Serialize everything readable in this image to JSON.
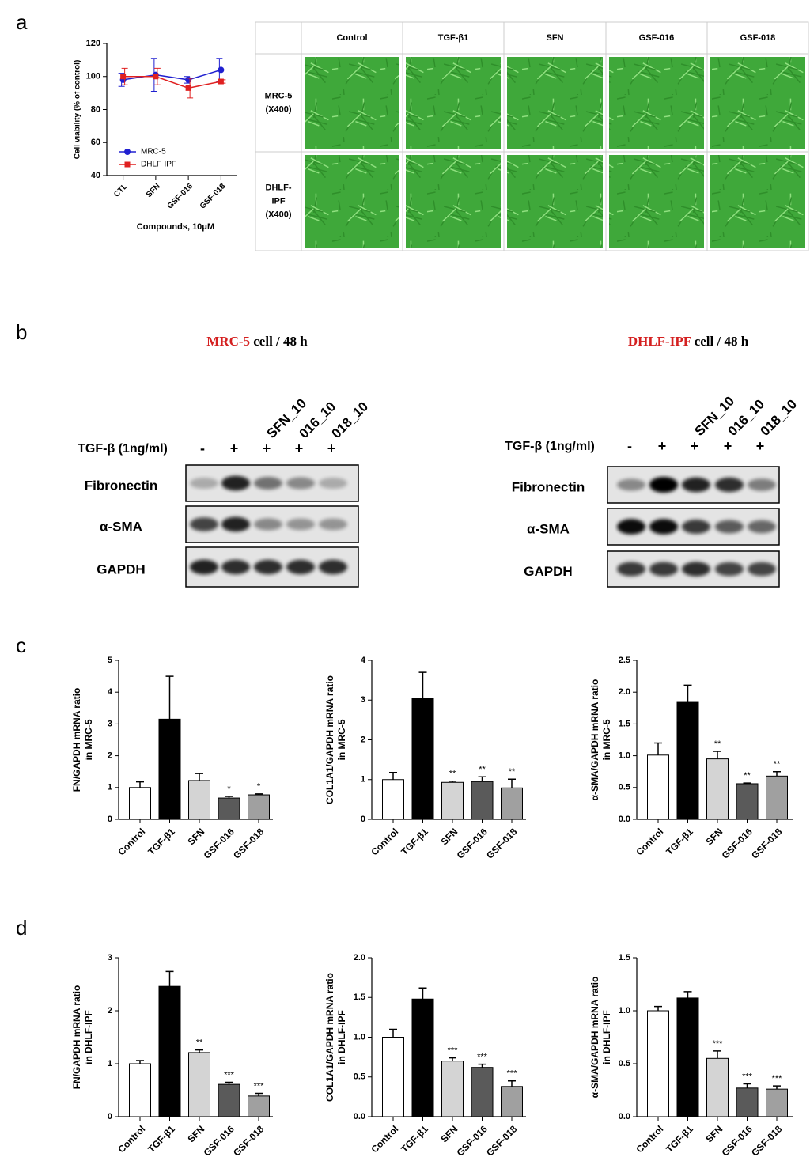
{
  "panel_labels": [
    "a",
    "b",
    "c",
    "d"
  ],
  "micrographs": {
    "columns": [
      "Control",
      "TGF-β1",
      "SFN",
      "GSF-016",
      "GSF-018"
    ],
    "rows": [
      [
        "MRC-5",
        "(X400)"
      ],
      [
        "DHLF-",
        "IPF",
        "(X400)"
      ]
    ]
  },
  "blots": [
    {
      "title_cell": "MRC-5",
      "title_rest": "cell / 48 h",
      "lanes": [
        "SFN_10",
        "016_10",
        "018_10"
      ],
      "treatment": "TGF-β (1ng/ml)",
      "signs": [
        "-",
        "+",
        "+",
        "+",
        "+"
      ],
      "proteins": [
        "Fibronectin",
        "α-SMA",
        "GAPDH"
      ]
    },
    {
      "title_cell": "DHLF-IPF",
      "title_rest": "cell / 48 h",
      "lanes": [
        "SFN_10",
        "016_10",
        "018_10"
      ],
      "treatment": "TGF-β (1ng/ml)",
      "signs": [
        "-",
        "+",
        "+",
        "+",
        "+"
      ],
      "proteins": [
        "Fibronectin",
        "α-SMA",
        "GAPDH"
      ]
    }
  ],
  "chart_data": [
    {
      "type": "line",
      "ylabel": "Cell viability (% of control)",
      "xlabel": "Compounds, 10μM",
      "categories": [
        "CTL",
        "SFN",
        "GSF-016",
        "GSF-018"
      ],
      "series": [
        {
          "name": "MRC-5",
          "color": "#2020d0",
          "marker": "circle",
          "values": [
            98,
            101,
            98,
            104
          ],
          "errors": [
            4,
            10,
            2,
            7
          ]
        },
        {
          "name": "DHLF-IPF",
          "color": "#e02020",
          "marker": "square",
          "values": [
            100,
            100,
            93,
            97
          ],
          "errors": [
            5,
            5,
            6,
            1
          ]
        }
      ],
      "ylim": [
        40,
        120
      ],
      "yticks": [
        40,
        60,
        80,
        100,
        120
      ]
    },
    {
      "type": "bar",
      "ylabel": "FN/GAPDH mRNA ratio",
      "ylabel2": "in MRC-5",
      "categories": [
        "Control",
        "TGF-β1",
        "SFN",
        "GSF-016",
        "GSF-018"
      ],
      "values": [
        1.0,
        3.15,
        1.22,
        0.67,
        0.77
      ],
      "errors": [
        0.18,
        1.35,
        0.22,
        0.05,
        0.03
      ],
      "annotations": [
        null,
        null,
        null,
        "*",
        "*"
      ],
      "colors": [
        "#ffffff",
        "#000000",
        "#d4d4d4",
        "#5a5a5a",
        "#a0a0a0"
      ],
      "ylim": [
        0,
        5
      ],
      "yticks": [
        0,
        1,
        2,
        3,
        4,
        5
      ]
    },
    {
      "type": "bar",
      "ylabel": "COL1A1/GAPDH mRNA ratio",
      "ylabel2": "in MRC-5",
      "categories": [
        "Control",
        "TGF-β1",
        "SFN",
        "GSF-016",
        "GSF-018"
      ],
      "values": [
        1.0,
        3.05,
        0.93,
        0.95,
        0.79
      ],
      "errors": [
        0.18,
        0.65,
        0.03,
        0.12,
        0.22
      ],
      "annotations": [
        null,
        null,
        "**",
        "**",
        "**"
      ],
      "colors": [
        "#ffffff",
        "#000000",
        "#d4d4d4",
        "#5a5a5a",
        "#a0a0a0"
      ],
      "ylim": [
        0,
        4
      ],
      "yticks": [
        0,
        1,
        2,
        3,
        4
      ]
    },
    {
      "type": "bar",
      "ylabel": "α-SMA/GAPDH mRNA ratio",
      "ylabel2": "in MRC-5",
      "categories": [
        "Control",
        "TGF-β1",
        "SFN",
        "GSF-016",
        "GSF-018"
      ],
      "values": [
        1.01,
        1.84,
        0.95,
        0.56,
        0.68
      ],
      "errors": [
        0.19,
        0.27,
        0.12,
        0.01,
        0.07
      ],
      "annotations": [
        null,
        null,
        "**",
        "**",
        "**"
      ],
      "colors": [
        "#ffffff",
        "#000000",
        "#d4d4d4",
        "#5a5a5a",
        "#a0a0a0"
      ],
      "ylim": [
        0,
        2.5
      ],
      "yticks": [
        {
          "value": 0,
          "label": "0.0"
        },
        0.5,
        {
          "value": 1,
          "label": "1.0"
        },
        1.5,
        {
          "value": 2,
          "label": "2.0"
        },
        2.5
      ]
    },
    {
      "type": "bar",
      "ylabel": "FN/GAPDH mRNA ratio",
      "ylabel2": "in DHLF-IPF",
      "categories": [
        "Control",
        "TGF-β1",
        "SFN",
        "GSF-016",
        "GSF-018"
      ],
      "values": [
        1.0,
        2.46,
        1.21,
        0.61,
        0.39
      ],
      "errors": [
        0.06,
        0.28,
        0.05,
        0.04,
        0.05
      ],
      "annotations": [
        null,
        null,
        "**",
        "***",
        "***"
      ],
      "colors": [
        "#ffffff",
        "#000000",
        "#d4d4d4",
        "#5a5a5a",
        "#a0a0a0"
      ],
      "ylim": [
        0,
        3
      ],
      "yticks": [
        0,
        1,
        2,
        3
      ]
    },
    {
      "type": "bar",
      "ylabel": "COL1A1/GAPDH mRNA ratio",
      "ylabel2": "in DHLF-IPF",
      "categories": [
        "Control",
        "TGF-β1",
        "SFN",
        "GSF-016",
        "GSF-018"
      ],
      "values": [
        1.0,
        1.48,
        0.7,
        0.62,
        0.38
      ],
      "errors": [
        0.1,
        0.14,
        0.04,
        0.04,
        0.07
      ],
      "annotations": [
        null,
        null,
        "***",
        "***",
        "***"
      ],
      "colors": [
        "#ffffff",
        "#000000",
        "#d4d4d4",
        "#5a5a5a",
        "#a0a0a0"
      ],
      "ylim": [
        0,
        2
      ],
      "yticks": [
        {
          "value": 0,
          "label": "0.0"
        },
        0.5,
        {
          "value": 1,
          "label": "1.0"
        },
        1.5,
        {
          "value": 2,
          "label": "2.0"
        }
      ]
    },
    {
      "type": "bar",
      "ylabel": "α-SMA/GAPDH mRNA ratio",
      "ylabel2": "in DHLF-IPF",
      "categories": [
        "Control",
        "TGF-β1",
        "SFN",
        "GSF-016",
        "GSF-018"
      ],
      "values": [
        1.0,
        1.12,
        0.55,
        0.27,
        0.26
      ],
      "errors": [
        0.04,
        0.06,
        0.07,
        0.04,
        0.03
      ],
      "annotations": [
        null,
        null,
        "***",
        "***",
        "***"
      ],
      "colors": [
        "#ffffff",
        "#000000",
        "#d4d4d4",
        "#5a5a5a",
        "#a0a0a0"
      ],
      "ylim": [
        0,
        1.5
      ],
      "yticks": [
        {
          "value": 0,
          "label": "0.0"
        },
        0.5,
        {
          "value": 1,
          "label": "1.0"
        },
        1.5
      ]
    }
  ]
}
